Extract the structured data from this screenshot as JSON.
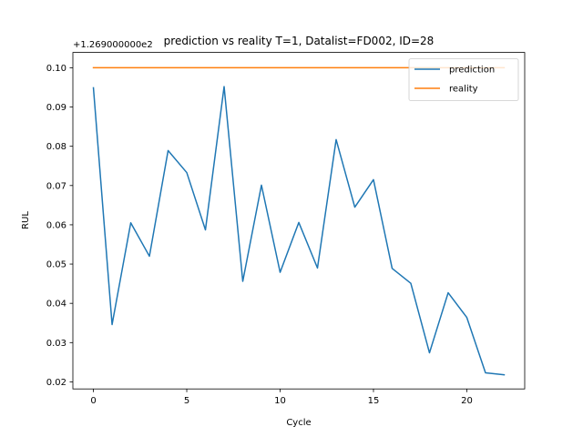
{
  "chart_data": {
    "type": "line",
    "title": "prediction vs reality T=1, Datalist=FD002, ID=28",
    "xlabel": "Cycle",
    "ylabel": "RUL",
    "y_offset_label": "+1.269000000e2",
    "xlim": [
      -1.1,
      23.1
    ],
    "ylim": [
      0.0182,
      0.1039
    ],
    "x_ticks": [
      0,
      5,
      10,
      15,
      20
    ],
    "y_ticks": [
      0.02,
      0.03,
      0.04,
      0.05,
      0.06,
      0.07,
      0.08,
      0.09,
      0.1
    ],
    "y_tick_labels": [
      "0.02",
      "0.03",
      "0.04",
      "0.05",
      "0.06",
      "0.07",
      "0.08",
      "0.09",
      "0.10"
    ],
    "grid": false,
    "legend_position": "top-right",
    "series": [
      {
        "name": "prediction",
        "color": "#1f77b4",
        "x": [
          0,
          1,
          2,
          3,
          4,
          5,
          6,
          7,
          8,
          9,
          10,
          11,
          12,
          13,
          14,
          15,
          16,
          17,
          18,
          19,
          20,
          21,
          22
        ],
        "values": [
          0.0949,
          0.0346,
          0.0605,
          0.052,
          0.0789,
          0.0733,
          0.0587,
          0.0952,
          0.0456,
          0.0701,
          0.0479,
          0.0606,
          0.049,
          0.0817,
          0.0645,
          0.0715,
          0.0489,
          0.0451,
          0.0274,
          0.0427,
          0.0364,
          0.0223,
          0.0218
        ]
      },
      {
        "name": "reality",
        "color": "#ff7f0e",
        "x": [
          0,
          1,
          2,
          3,
          4,
          5,
          6,
          7,
          8,
          9,
          10,
          11,
          12,
          13,
          14,
          15,
          16,
          17,
          18,
          19,
          20,
          21,
          22
        ],
        "values": [
          0.1,
          0.1,
          0.1,
          0.1,
          0.1,
          0.1,
          0.1,
          0.1,
          0.1,
          0.1,
          0.1,
          0.1,
          0.1,
          0.1,
          0.1,
          0.1,
          0.1,
          0.1,
          0.1,
          0.1,
          0.1,
          0.1,
          0.1
        ]
      }
    ]
  }
}
